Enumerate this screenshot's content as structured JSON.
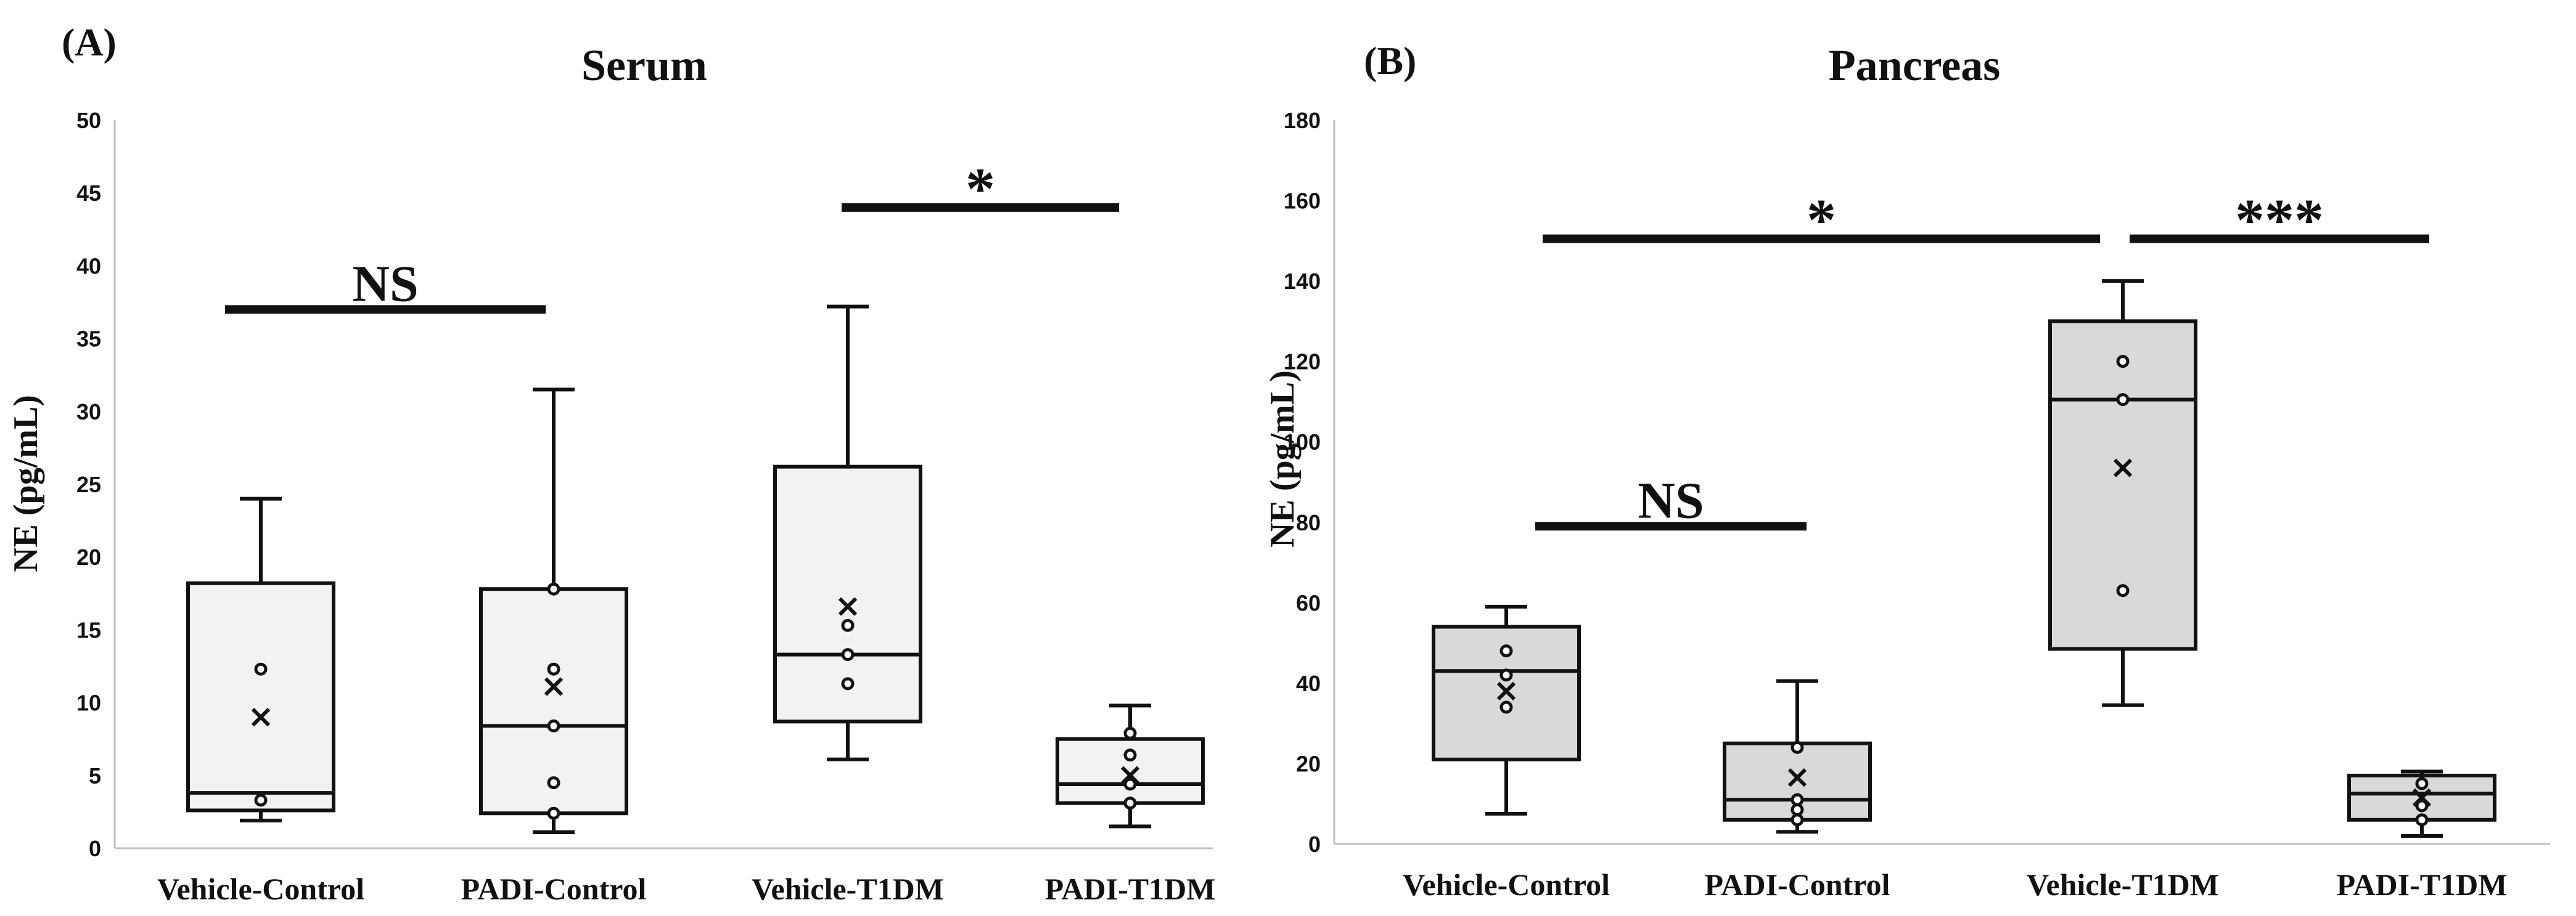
{
  "colors": {
    "serum_box": "#f2f2f2",
    "pancreas_box": "#d9d9d9",
    "ink": "#111111"
  },
  "chart_data": [
    {
      "type": "box",
      "panel_label": "(A)",
      "title": "Serum",
      "ylabel": "NE (pg/mL)",
      "ylim": [
        0,
        50
      ],
      "yticks": [
        0,
        5,
        10,
        15,
        20,
        25,
        30,
        35,
        40,
        45,
        50
      ],
      "categories": [
        "Vehicle-Control",
        "PADI-Control",
        "Vehicle-T1DM",
        "PADI-T1DM"
      ],
      "boxes": [
        {
          "min": 1.9,
          "q1": 2.6,
          "median": 3.8,
          "q3": 18.2,
          "max": 24.0,
          "mean": 9.0,
          "points": [
            3.3,
            12.3
          ]
        },
        {
          "min": 1.1,
          "q1": 2.4,
          "median": 8.4,
          "q3": 17.8,
          "max": 31.5,
          "mean": 11.1,
          "points": [
            2.4,
            4.5,
            8.4,
            12.3,
            17.8
          ]
        },
        {
          "min": 6.1,
          "q1": 8.7,
          "median": 13.3,
          "q3": 26.2,
          "max": 37.2,
          "mean": 16.6,
          "points": [
            11.3,
            13.3,
            15.3
          ]
        },
        {
          "min": 1.5,
          "q1": 3.1,
          "median": 4.4,
          "q3": 7.5,
          "max": 9.8,
          "mean": 5.0,
          "points": [
            3.1,
            4.4,
            6.4,
            7.9
          ]
        }
      ],
      "significance": [
        {
          "text": "NS",
          "from": 0,
          "to": 1,
          "y": 37
        },
        {
          "text": "*",
          "from": 2,
          "to": 3,
          "y": 44
        }
      ]
    },
    {
      "type": "box",
      "panel_label": "(B)",
      "title": "Pancreas",
      "ylabel": "NE (pg/mL)",
      "ylim": [
        0,
        180
      ],
      "yticks": [
        0,
        20,
        40,
        60,
        80,
        100,
        120,
        140,
        160,
        180
      ],
      "categories": [
        "Vehicle-Control",
        "PADI-Control",
        "Vehicle-T1DM",
        "PADI-T1DM"
      ],
      "boxes": [
        {
          "min": 7.5,
          "q1": 21,
          "median": 43,
          "q3": 54,
          "max": 59,
          "mean": 38,
          "points": [
            34,
            42,
            48
          ]
        },
        {
          "min": 3,
          "q1": 6,
          "median": 11,
          "q3": 25,
          "max": 40.5,
          "mean": 16.5,
          "points": [
            6,
            8.5,
            11,
            24
          ]
        },
        {
          "min": 34.5,
          "q1": 48.5,
          "median": 110.5,
          "q3": 130,
          "max": 140,
          "mean": 93.5,
          "points": [
            63,
            110.5,
            120
          ]
        },
        {
          "min": 2,
          "q1": 6,
          "median": 12.5,
          "q3": 17,
          "max": 18,
          "mean": 11.5,
          "points": [
            6,
            9.5,
            15
          ]
        }
      ],
      "significance": [
        {
          "text": "NS",
          "from": 0,
          "to": 1,
          "y": 79
        },
        {
          "text": "*",
          "from": 0,
          "to": 2,
          "y": 150.5
        },
        {
          "text": "***",
          "from": 2,
          "to": 3,
          "y": 150.5
        }
      ]
    }
  ]
}
